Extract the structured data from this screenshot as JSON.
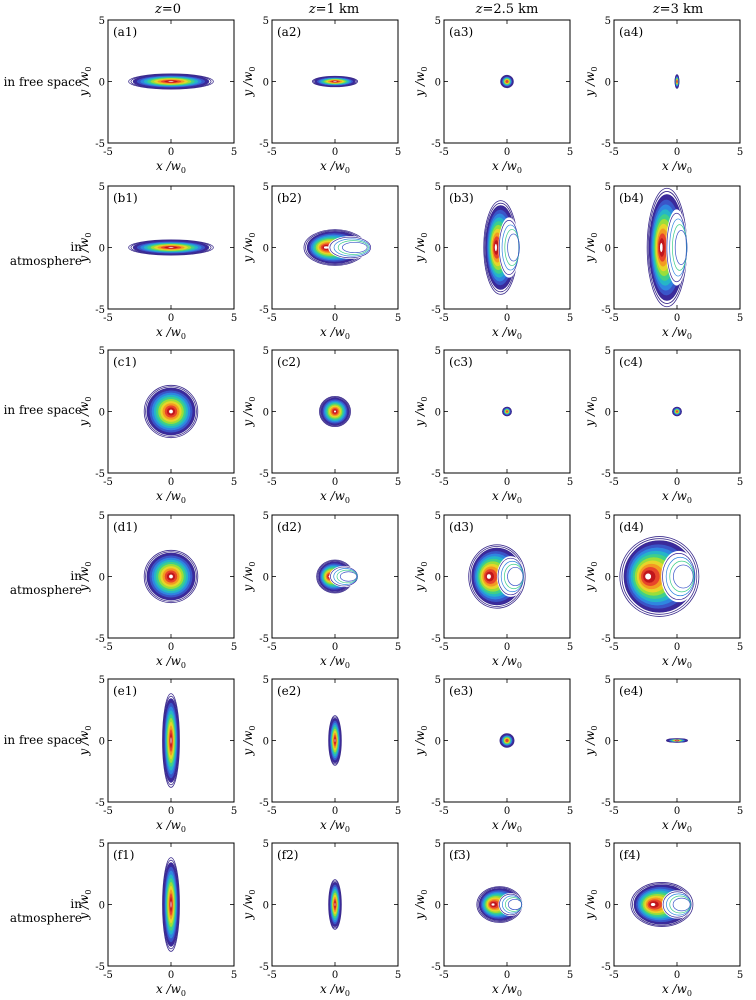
{
  "columns": [
    {
      "z_label": "z",
      "z_value": "=0"
    },
    {
      "z_label": "z",
      "z_value": "=1 km"
    },
    {
      "z_label": "z",
      "z_value": "=2.5 km"
    },
    {
      "z_label": "z",
      "z_value": "=3 km"
    }
  ],
  "rows": [
    {
      "label": "in free space"
    },
    {
      "label": "in atmosphere"
    },
    {
      "label": "in free space"
    },
    {
      "label": "in atmosphere"
    },
    {
      "label": "in free space"
    },
    {
      "label": "in atmosphere"
    }
  ],
  "axes": {
    "xlabel": "x /w",
    "xlabel_sub": "0",
    "ylabel": "y /w",
    "ylabel_sub": "0",
    "xticks": [
      "-5",
      "0",
      "5"
    ],
    "yticks": [
      "5",
      "0",
      "-5"
    ],
    "xlim": [
      -5,
      5
    ],
    "ylim": [
      -5,
      5
    ]
  },
  "colors": {
    "outer": "#3a2a8c",
    "levels": [
      "#3b2a9a",
      "#3a55c8",
      "#2f86e0",
      "#25b5c8",
      "#3fcf8a",
      "#9ade3a",
      "#e8d52a",
      "#f39a22",
      "#e8452a",
      "#c0161c",
      "#ffffff"
    ]
  },
  "chart_data": [
    {
      "id": "a1",
      "panel_label": "(a1)",
      "type": "contour",
      "shape": "ellipse",
      "center": [
        0,
        0
      ],
      "rx": 3.0,
      "ry": 0.55
    },
    {
      "id": "a2",
      "panel_label": "(a2)",
      "type": "contour",
      "shape": "ellipse",
      "center": [
        0,
        0
      ],
      "rx": 1.6,
      "ry": 0.38
    },
    {
      "id": "a3",
      "panel_label": "(a3)",
      "type": "contour",
      "shape": "ellipse",
      "center": [
        0,
        0
      ],
      "rx": 0.45,
      "ry": 0.45
    },
    {
      "id": "a4",
      "panel_label": "(a4)",
      "type": "contour",
      "shape": "ellipse",
      "center": [
        0,
        0
      ],
      "rx": 0.14,
      "ry": 0.5
    },
    {
      "id": "b1",
      "panel_label": "(b1)",
      "type": "contour",
      "shape": "ellipse",
      "center": [
        0,
        0
      ],
      "rx": 3.0,
      "ry": 0.55
    },
    {
      "id": "b2",
      "panel_label": "(b2)",
      "type": "contour",
      "shape": "crescent",
      "center": [
        0,
        0
      ],
      "rx": 2.2,
      "ry": 1.3,
      "cut": 0.8
    },
    {
      "id": "b3",
      "panel_label": "(b3)",
      "type": "contour",
      "shape": "crescent",
      "center": [
        -0.5,
        0
      ],
      "rx": 1.2,
      "ry": 3.4,
      "cut": 0.7
    },
    {
      "id": "b4",
      "panel_label": "(b4)",
      "type": "contour",
      "shape": "crescent",
      "center": [
        -0.8,
        0
      ],
      "rx": 1.4,
      "ry": 4.3,
      "cut": 0.6
    },
    {
      "id": "c1",
      "panel_label": "(c1)",
      "type": "contour",
      "shape": "ellipse",
      "center": [
        0,
        0
      ],
      "rx": 1.9,
      "ry": 1.9
    },
    {
      "id": "c2",
      "panel_label": "(c2)",
      "type": "contour",
      "shape": "ellipse",
      "center": [
        0,
        0
      ],
      "rx": 1.1,
      "ry": 1.1
    },
    {
      "id": "c3",
      "panel_label": "(c3)",
      "type": "contour",
      "shape": "ellipse",
      "center": [
        0,
        0
      ],
      "rx": 0.32,
      "ry": 0.32
    },
    {
      "id": "c4",
      "panel_label": "(c4)",
      "type": "contour",
      "shape": "ellipse",
      "center": [
        0,
        0
      ],
      "rx": 0.32,
      "ry": 0.32
    },
    {
      "id": "d1",
      "panel_label": "(d1)",
      "type": "contour",
      "shape": "ellipse",
      "center": [
        0,
        0
      ],
      "rx": 1.9,
      "ry": 1.9
    },
    {
      "id": "d2",
      "panel_label": "(d2)",
      "type": "contour",
      "shape": "crescent",
      "center": [
        0,
        0
      ],
      "rx": 1.3,
      "ry": 1.2,
      "cut": 0.9
    },
    {
      "id": "d3",
      "panel_label": "(d3)",
      "type": "contour",
      "shape": "crescent",
      "center": [
        -0.8,
        0
      ],
      "rx": 2.0,
      "ry": 2.3,
      "cut": 0.55
    },
    {
      "id": "d4",
      "panel_label": "(d4)",
      "type": "contour",
      "shape": "crescent",
      "center": [
        -1.4,
        0
      ],
      "rx": 2.8,
      "ry": 2.9,
      "cut": 0.5
    },
    {
      "id": "e1",
      "panel_label": "(e1)",
      "type": "contour",
      "shape": "ellipse",
      "center": [
        0,
        0
      ],
      "rx": 0.6,
      "ry": 3.4
    },
    {
      "id": "e2",
      "panel_label": "(e2)",
      "type": "contour",
      "shape": "ellipse",
      "center": [
        0,
        0
      ],
      "rx": 0.45,
      "ry": 1.8
    },
    {
      "id": "e3",
      "panel_label": "(e3)",
      "type": "contour",
      "shape": "ellipse",
      "center": [
        0,
        0
      ],
      "rx": 0.5,
      "ry": 0.5
    },
    {
      "id": "e4",
      "panel_label": "(e4)",
      "type": "contour",
      "shape": "ellipse",
      "center": [
        0,
        0
      ],
      "rx": 0.75,
      "ry": 0.13
    },
    {
      "id": "f1",
      "panel_label": "(f1)",
      "type": "contour",
      "shape": "ellipse",
      "center": [
        0,
        0
      ],
      "rx": 0.6,
      "ry": 3.4
    },
    {
      "id": "f2",
      "panel_label": "(f2)",
      "type": "contour",
      "shape": "ellipse",
      "center": [
        0,
        0
      ],
      "rx": 0.45,
      "ry": 1.8
    },
    {
      "id": "f3",
      "panel_label": "(f3)",
      "type": "contour",
      "shape": "crescent",
      "center": [
        -0.6,
        0
      ],
      "rx": 1.6,
      "ry": 1.3,
      "cut": 0.6
    },
    {
      "id": "f4",
      "panel_label": "(f4)",
      "type": "contour",
      "shape": "crescent",
      "center": [
        -1.2,
        0
      ],
      "rx": 2.2,
      "ry": 1.6,
      "cut": 0.55
    }
  ]
}
